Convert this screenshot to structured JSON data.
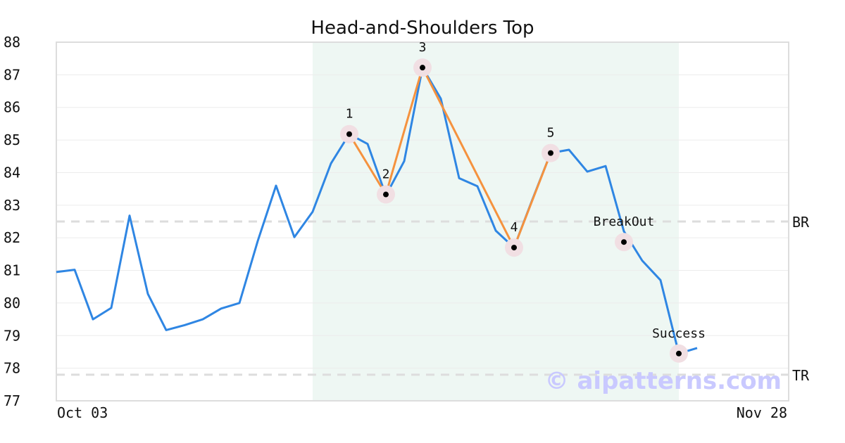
{
  "chart_data": {
    "type": "line",
    "title": "Head-and-Shoulders Top",
    "xlabel": "",
    "ylabel": "",
    "x_start_label": "Oct 03",
    "x_end_label": "Nov 28",
    "ylim": [
      77,
      88
    ],
    "yticks": [
      "77",
      "78",
      "79",
      "80",
      "81",
      "82",
      "83",
      "84",
      "85",
      "86",
      "87",
      "88"
    ],
    "grid": "horizontal",
    "series": [
      {
        "color": "#2f86e3",
        "values": [
          80.95,
          81.02,
          79.5,
          79.85,
          82.68,
          80.28,
          79.17,
          79.32,
          79.5,
          79.83,
          80.0,
          81.9,
          83.6,
          82.02,
          82.8,
          84.28,
          85.18,
          84.88,
          83.3,
          84.35,
          87.22,
          86.27,
          83.83,
          83.58,
          82.22,
          81.7,
          83.17,
          84.6,
          84.7,
          84.03,
          84.2,
          82.2,
          81.3,
          80.7,
          78.45,
          78.62
        ]
      }
    ],
    "pattern": {
      "color": "#f5923e",
      "points": [
        {
          "label": "1",
          "index": 16,
          "value": 85.18
        },
        {
          "label": "2",
          "index": 18,
          "value": 83.33
        },
        {
          "label": "3",
          "index": 20,
          "value": 87.22
        },
        {
          "label": "4",
          "index": 25,
          "value": 81.7
        },
        {
          "label": "5",
          "index": 27,
          "value": 84.6
        }
      ]
    },
    "markers": [
      {
        "label": "BreakOut",
        "index": 31,
        "value": 81.87
      },
      {
        "label": "Success",
        "index": 34,
        "value": 78.45
      }
    ],
    "reference_lines": [
      {
        "label": "BR",
        "value": 82.5
      },
      {
        "label": "TR",
        "value": 77.8
      }
    ],
    "highlight": {
      "from_index": 14,
      "to_index": 34,
      "color": "#eef7f3"
    },
    "watermark": "© aipatterns.com"
  }
}
